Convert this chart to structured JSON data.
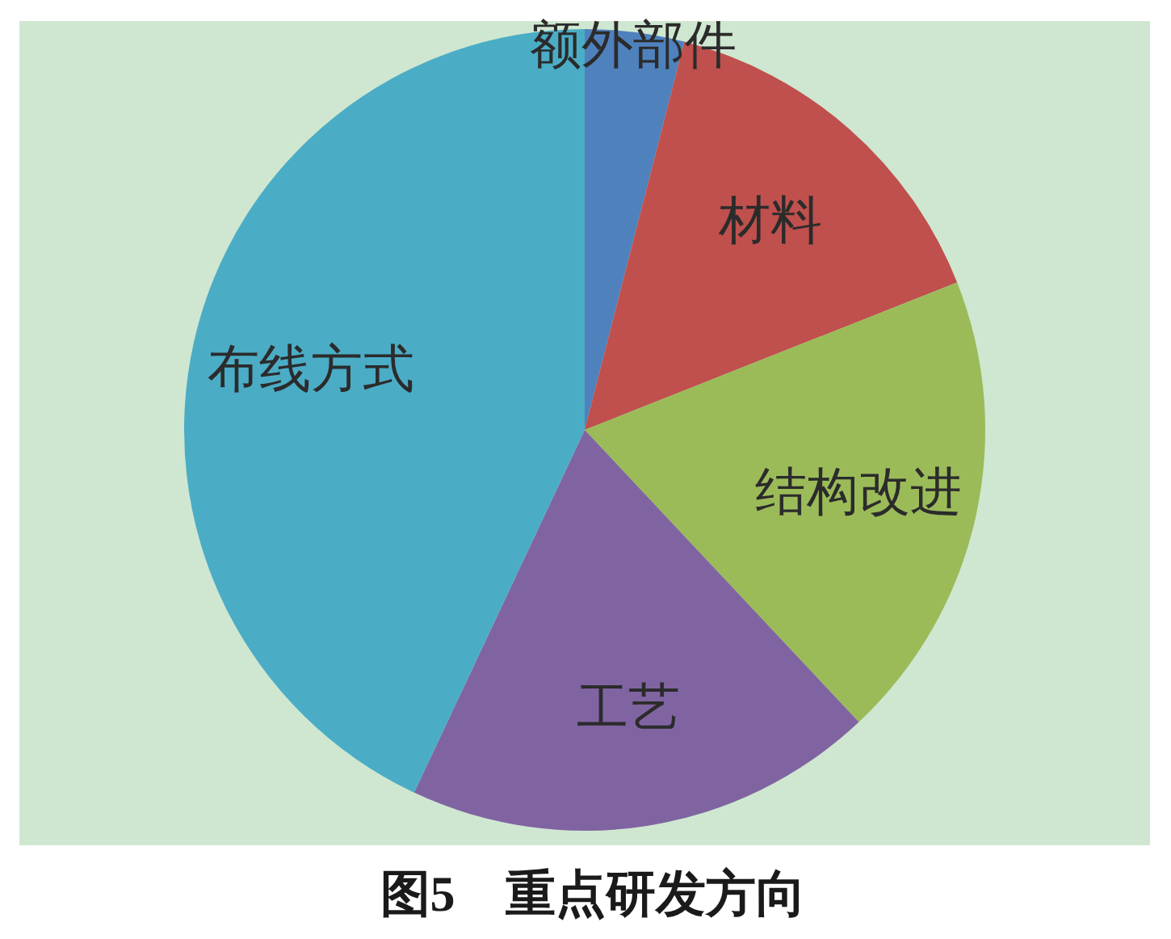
{
  "chart_data": {
    "type": "pie",
    "title": "图5　重点研发方向",
    "categories": [
      "额外部件",
      "材料",
      "结构改进",
      "工艺",
      "布线方式"
    ],
    "values": [
      4,
      15,
      19,
      19,
      43
    ],
    "colors": [
      "#4f81bd",
      "#c0504d",
      "#9bbb59",
      "#8064a2",
      "#4bacc6"
    ]
  }
}
